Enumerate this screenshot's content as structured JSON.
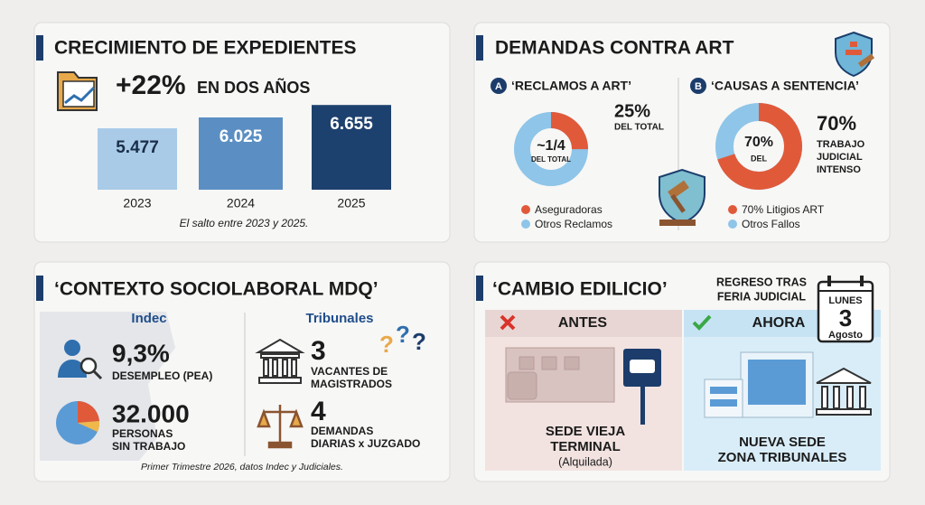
{
  "panels": [
    {
      "title": "CRECIMIENTO DE EXPEDIENTES",
      "headline": "+22%",
      "headline_suffix": "EN DOS AÑOS",
      "bars": [
        {
          "year": "2023",
          "value": 5477,
          "label": "5.477"
        },
        {
          "year": "2024",
          "value": 6025,
          "label": "6.025"
        },
        {
          "year": "2025",
          "value": 6655,
          "label": "6.655"
        }
      ],
      "note": "El salto entre 2023 y 2025."
    },
    {
      "title": "DEMANDAS CONTRA ART",
      "a": {
        "badge": "A",
        "title": "‘RECLAMOS A ART’",
        "percent": 25,
        "percent_label": "25%",
        "percent_caption": "DEL TOTAL",
        "center": "~1/4",
        "center_caption": "DEL TOTAL",
        "legend": [
          "Aseguradoras",
          "Otros Reclamos"
        ]
      },
      "b": {
        "badge": "B",
        "title": "‘CAUSAS A SENTENCIA’",
        "percent": 70,
        "percent_label": "70%",
        "percent_caption": [
          "TRABAJO",
          "JUDICIAL",
          "INTENSO"
        ],
        "center": "70%",
        "center_caption": "DEL",
        "legend": [
          "70% Litigios ART",
          "Otros Fallos"
        ]
      }
    },
    {
      "title": "‘CONTEXTO SOCIOLABORAL MDQ’",
      "left": {
        "heading": "Indec",
        "stats": [
          {
            "value": "9,3%",
            "caption": [
              "DESEMPLEO (PEA)"
            ]
          },
          {
            "value": "32.000",
            "caption": [
              "PERSONAS",
              "SIN TRABAJO"
            ]
          }
        ]
      },
      "right": {
        "heading": "Tribunales",
        "stats": [
          {
            "value": "3",
            "caption": [
              "VACANTES DE",
              "MAGISTRADOS"
            ]
          },
          {
            "value": "4",
            "caption": [
              "DEMANDAS",
              "DIARIAS x JUZGADO"
            ]
          }
        ]
      },
      "note": "Primer Trimestre 2026, datos Indec y Judiciales."
    },
    {
      "title": "‘CAMBIO EDILICIO’",
      "notice": [
        "REGRESO TRAS",
        "FERIA JUDICIAL"
      ],
      "calendar": {
        "weekday": "LUNES",
        "day": "3",
        "month": "Agosto"
      },
      "before": {
        "label": "ANTES",
        "caption": [
          "SEDE VIEJA",
          "TERMINAL"
        ],
        "sub": "(Alquilada)"
      },
      "after": {
        "label": "AHORA",
        "caption": [
          "NUEVA SEDE",
          "ZONA TRIBUNALES"
        ]
      }
    }
  ]
}
